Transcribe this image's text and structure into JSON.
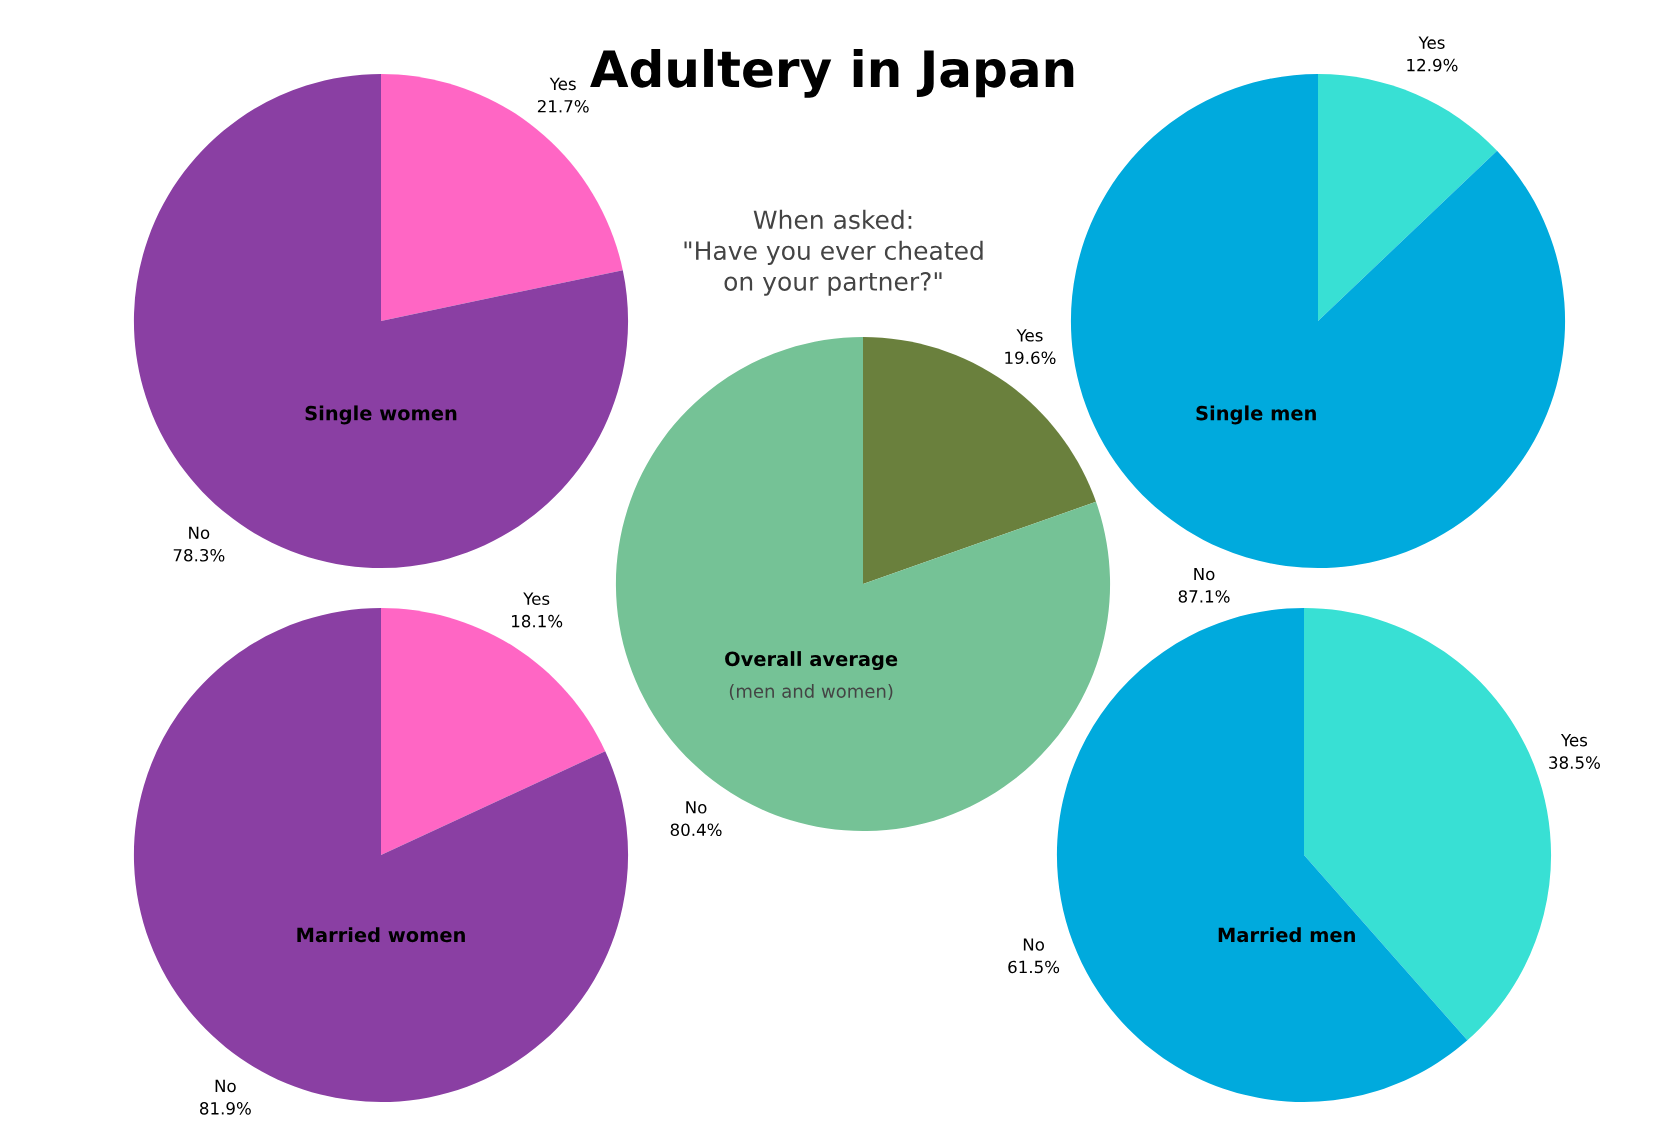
{
  "chart_data": [
    {
      "type": "other",
      "title": "Adultery in Japan",
      "subtitle": "When asked:\n\"Have you ever cheated\non your partner?\""
    },
    {
      "type": "pie",
      "title": "Single women",
      "categories": [
        "Yes",
        "No"
      ],
      "values": [
        21.7,
        78.3
      ],
      "value_labels": [
        "21.7%",
        "78.3%"
      ],
      "colors": [
        "#ff66c4",
        "#8a3fa3"
      ]
    },
    {
      "type": "pie",
      "title": "Single men",
      "categories": [
        "Yes",
        "No"
      ],
      "values": [
        12.9,
        87.1
      ],
      "value_labels": [
        "12.9%",
        "87.1%"
      ],
      "colors": [
        "#38e0d4",
        "#00aadd"
      ]
    },
    {
      "type": "pie",
      "title": "Overall average",
      "subtitle": "(men and women)",
      "categories": [
        "Yes",
        "No"
      ],
      "values": [
        19.6,
        80.4
      ],
      "value_labels": [
        "19.6%",
        "80.4%"
      ],
      "colors": [
        "#6a803d",
        "#75c296"
      ]
    },
    {
      "type": "pie",
      "title": "Married women",
      "categories": [
        "Yes",
        "No"
      ],
      "values": [
        18.1,
        81.9
      ],
      "value_labels": [
        "18.1%",
        "81.9%"
      ],
      "colors": [
        "#ff66c4",
        "#8a3fa3"
      ]
    },
    {
      "type": "pie",
      "title": "Married men",
      "categories": [
        "Yes",
        "No"
      ],
      "values": [
        38.5,
        61.5
      ],
      "value_labels": [
        "38.5%",
        "61.5%"
      ],
      "colors": [
        "#38e0d4",
        "#00aadd"
      ]
    }
  ]
}
